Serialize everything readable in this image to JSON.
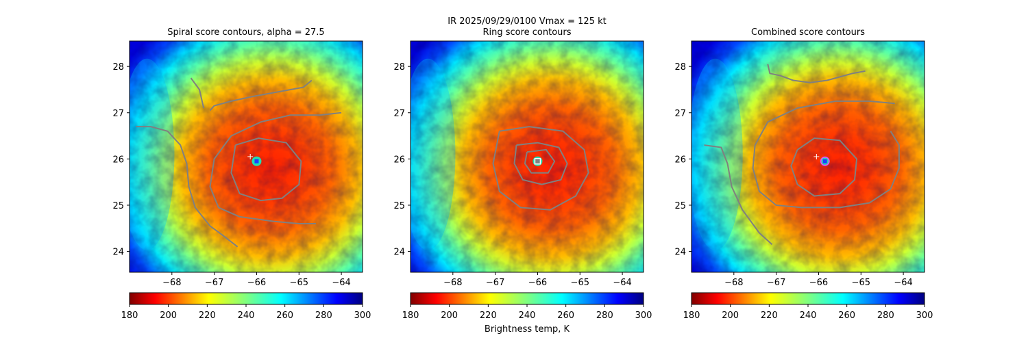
{
  "figure": {
    "suptitle": "IR  2025/09/29/0100    Vmax = 125 kt",
    "colorbar_label": "Brightness temp, K"
  },
  "colors": {
    "contour": "#808080",
    "marker_fill": "#1e3cff",
    "marker_ring": "#ff3cff",
    "box_outline": "#ffffff"
  },
  "chart_data": [
    {
      "type": "heatmap",
      "title": "Spiral score contours, alpha = 27.5",
      "xlim": [
        -69,
        -63.5
      ],
      "ylim": [
        23.55,
        28.55
      ],
      "xticks": [
        -68,
        -67,
        -66,
        -65,
        -64
      ],
      "yticks": [
        24,
        25,
        26,
        27,
        28
      ],
      "center": {
        "lon": -66.0,
        "lat": 25.95
      },
      "first_guess": {
        "lon": -66.15,
        "lat": 26.05
      },
      "marker": "blue-dot",
      "contours": [
        [
          [
            -67.1,
            27.05
          ],
          [
            -67.0,
            27.15
          ],
          [
            -66.6,
            27.25
          ],
          [
            -66.1,
            27.35
          ],
          [
            -65.5,
            27.45
          ],
          [
            -64.9,
            27.55
          ],
          [
            -64.7,
            27.7
          ]
        ],
        [
          [
            -67.55,
            27.75
          ],
          [
            -67.35,
            27.5
          ],
          [
            -67.25,
            27.1
          ]
        ],
        [
          [
            -68.85,
            26.7
          ],
          [
            -68.5,
            26.7
          ],
          [
            -68.1,
            26.6
          ],
          [
            -67.8,
            26.3
          ],
          [
            -67.65,
            25.9
          ],
          [
            -67.6,
            25.4
          ],
          [
            -67.45,
            24.95
          ],
          [
            -67.1,
            24.55
          ],
          [
            -66.8,
            24.35
          ],
          [
            -66.45,
            24.1
          ]
        ],
        [
          [
            -64.0,
            27.0
          ],
          [
            -64.5,
            26.95
          ],
          [
            -65.2,
            26.95
          ],
          [
            -65.9,
            26.8
          ],
          [
            -66.6,
            26.5
          ],
          [
            -67.0,
            26.0
          ],
          [
            -67.1,
            25.4
          ],
          [
            -66.9,
            24.95
          ],
          [
            -66.4,
            24.75
          ],
          [
            -65.6,
            24.65
          ],
          [
            -65.0,
            24.6
          ],
          [
            -64.6,
            24.6
          ]
        ],
        [
          [
            -66.5,
            26.3
          ],
          [
            -65.95,
            26.45
          ],
          [
            -65.3,
            26.35
          ],
          [
            -64.95,
            25.95
          ],
          [
            -65.0,
            25.45
          ],
          [
            -65.4,
            25.15
          ],
          [
            -65.9,
            25.1
          ],
          [
            -66.4,
            25.25
          ],
          [
            -66.6,
            25.7
          ],
          [
            -66.5,
            26.3
          ]
        ]
      ]
    },
    {
      "type": "heatmap",
      "title": "Ring score contours",
      "xlim": [
        -69,
        -63.5
      ],
      "ylim": [
        23.55,
        28.55
      ],
      "xticks": [
        -68,
        -67,
        -66,
        -65,
        -64
      ],
      "yticks": [
        24,
        25,
        26,
        27,
        28
      ],
      "center": {
        "lon": -66.0,
        "lat": 25.95
      },
      "marker": "white-box",
      "contours": [
        [
          [
            -66.9,
            26.6
          ],
          [
            -66.2,
            26.7
          ],
          [
            -65.4,
            26.6
          ],
          [
            -64.9,
            26.2
          ],
          [
            -64.8,
            25.7
          ],
          [
            -65.1,
            25.2
          ],
          [
            -65.7,
            24.9
          ],
          [
            -66.4,
            24.95
          ],
          [
            -66.9,
            25.3
          ],
          [
            -67.05,
            25.9
          ],
          [
            -66.9,
            26.6
          ]
        ],
        [
          [
            -66.5,
            26.3
          ],
          [
            -66.0,
            26.35
          ],
          [
            -65.5,
            26.25
          ],
          [
            -65.3,
            25.9
          ],
          [
            -65.45,
            25.55
          ],
          [
            -65.9,
            25.45
          ],
          [
            -66.35,
            25.55
          ],
          [
            -66.55,
            25.9
          ],
          [
            -66.5,
            26.3
          ]
        ],
        [
          [
            -66.25,
            26.15
          ],
          [
            -65.8,
            26.2
          ],
          [
            -65.6,
            25.95
          ],
          [
            -65.75,
            25.7
          ],
          [
            -66.15,
            25.7
          ],
          [
            -66.3,
            25.9
          ],
          [
            -66.25,
            26.15
          ]
        ]
      ]
    },
    {
      "type": "heatmap",
      "title": "Combined score contours",
      "xlim": [
        -69,
        -63.5
      ],
      "ylim": [
        23.55,
        28.55
      ],
      "xticks": [
        -68,
        -67,
        -66,
        -65,
        -64
      ],
      "yticks": [
        24,
        25,
        26,
        27,
        28
      ],
      "center": {
        "lon": -65.85,
        "lat": 25.95
      },
      "first_guess": {
        "lon": -66.05,
        "lat": 26.05
      },
      "marker": "blue-dot-ring",
      "contours": [
        [
          [
            -67.2,
            28.05
          ],
          [
            -67.15,
            27.85
          ],
          [
            -66.9,
            27.8
          ],
          [
            -66.6,
            27.7
          ],
          [
            -66.2,
            27.65
          ],
          [
            -65.8,
            27.7
          ],
          [
            -65.2,
            27.85
          ],
          [
            -64.9,
            27.9
          ]
        ],
        [
          [
            -64.2,
            27.2
          ],
          [
            -64.8,
            27.25
          ],
          [
            -65.6,
            27.25
          ],
          [
            -66.5,
            27.1
          ],
          [
            -67.2,
            26.8
          ],
          [
            -67.5,
            26.3
          ],
          [
            -67.55,
            25.8
          ],
          [
            -67.4,
            25.3
          ],
          [
            -67.0,
            25.0
          ],
          [
            -66.4,
            24.95
          ],
          [
            -65.5,
            24.95
          ],
          [
            -64.8,
            25.05
          ],
          [
            -64.3,
            25.35
          ],
          [
            -64.1,
            25.8
          ],
          [
            -64.1,
            26.3
          ],
          [
            -64.3,
            26.6
          ]
        ],
        [
          [
            -66.5,
            26.2
          ],
          [
            -66.1,
            26.45
          ],
          [
            -65.5,
            26.4
          ],
          [
            -65.1,
            26.0
          ],
          [
            -65.15,
            25.55
          ],
          [
            -65.5,
            25.25
          ],
          [
            -66.1,
            25.2
          ],
          [
            -66.5,
            25.45
          ],
          [
            -66.65,
            25.85
          ],
          [
            -66.5,
            26.2
          ]
        ],
        [
          [
            -68.7,
            26.3
          ],
          [
            -68.3,
            26.25
          ],
          [
            -68.15,
            25.9
          ],
          [
            -68.05,
            25.4
          ],
          [
            -67.8,
            24.9
          ],
          [
            -67.4,
            24.4
          ],
          [
            -67.1,
            24.15
          ]
        ]
      ]
    },
    {
      "type": "colorbar",
      "colormap": "jet_r",
      "range": [
        180,
        300
      ],
      "ticks": [
        180,
        200,
        220,
        240,
        260,
        280,
        300
      ]
    }
  ]
}
